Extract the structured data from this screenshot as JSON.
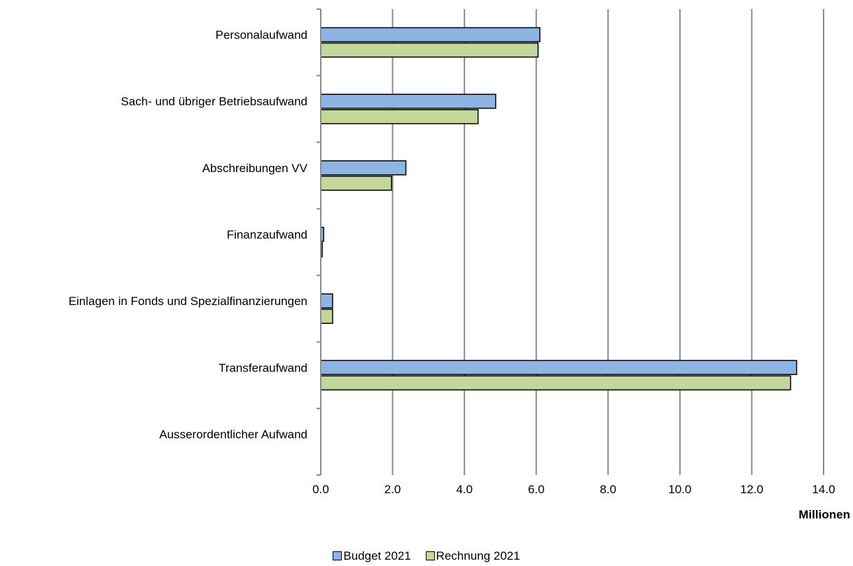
{
  "chart_data": {
    "type": "bar",
    "orientation": "horizontal",
    "categories": [
      "Personalaufwand",
      "Sach- und übriger Betriebsaufwand",
      "Abschreibungen VV",
      "Finanzaufwand",
      "Einlagen in Fonds und Spezialfinanzierungen",
      "Transferaufwand",
      "Ausserordentlicher Aufwand"
    ],
    "series": [
      {
        "name": "Budget 2021",
        "color": "#8db4e2",
        "values": [
          6.1,
          4.87,
          2.37,
          0.08,
          0.33,
          13.25,
          0
        ]
      },
      {
        "name": "Rechnung 2021",
        "color": "#c4d79b",
        "values": [
          6.05,
          4.38,
          1.97,
          0.04,
          0.33,
          13.08,
          0
        ]
      }
    ],
    "xlim": [
      0,
      14
    ],
    "xticks": [
      "0.0",
      "2.0",
      "4.0",
      "6.0",
      "8.0",
      "10.0",
      "12.0",
      "14.0"
    ],
    "xlabel": "Millionen",
    "grid": true,
    "legend_position": "bottom"
  }
}
